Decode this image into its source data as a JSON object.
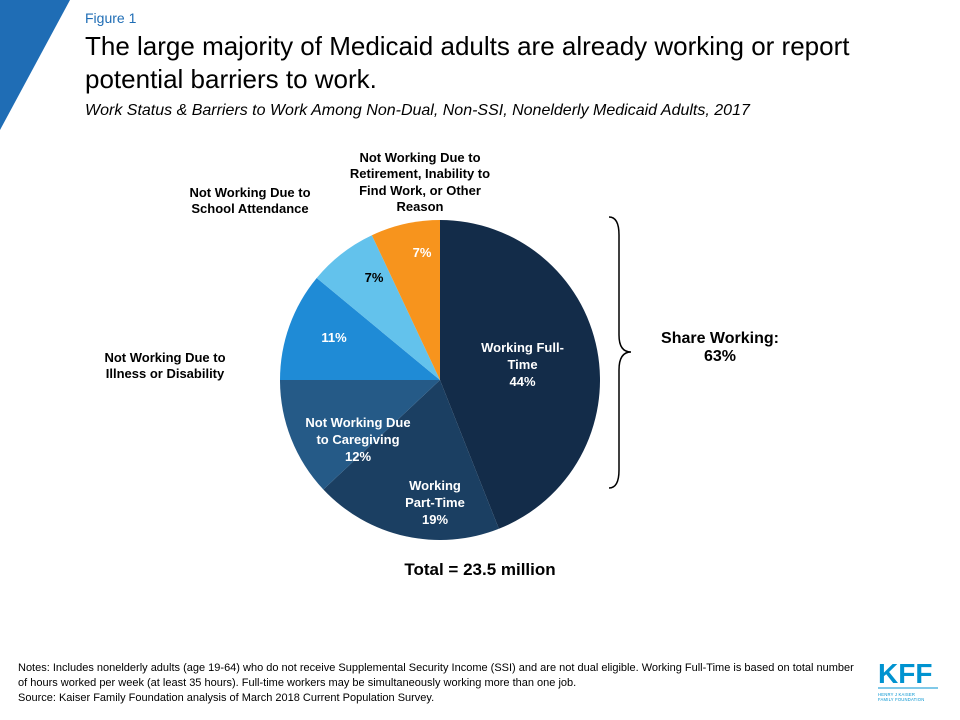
{
  "header": {
    "figure_label": "Figure 1",
    "title": "The large majority of Medicaid adults are already working or report potential barriers to work.",
    "subtitle": "Work Status & Barriers to Work Among Non-Dual, Non-SSI, Nonelderly Medicaid Adults, 2017"
  },
  "chart": {
    "type": "pie",
    "background_color": "#ffffff",
    "slices": [
      {
        "label": "Working Full-Time",
        "value": 44,
        "pct": "44%",
        "color": "#132c49",
        "in_slice": true,
        "text_color": "#ffffff"
      },
      {
        "label": "Working Part-Time",
        "value": 19,
        "pct": "19%",
        "color": "#1b3f62",
        "in_slice": true,
        "text_color": "#ffffff"
      },
      {
        "label": "Not Working Due to Caregiving",
        "value": 12,
        "pct": "12%",
        "color": "#255a87",
        "in_slice": true,
        "text_color": "#ffffff"
      },
      {
        "label": "Not Working Due to Illness or Disability",
        "value": 11,
        "pct": "11%",
        "color": "#1f8bd6",
        "in_slice": false,
        "text_color": "#ffffff"
      },
      {
        "label": "Not Working Due to School Attendance",
        "value": 7,
        "pct": "7%",
        "color": "#63c2ec",
        "in_slice": false,
        "text_color": "#000000"
      },
      {
        "label": "Not Working Due to Retirement, Inability to Find Work, or Other Reason",
        "value": 7,
        "pct": "7%",
        "color": "#f7941d",
        "in_slice": false,
        "text_color": "#000000"
      }
    ],
    "share_working_label": "Share Working:",
    "share_working_value": "63%",
    "total_label": "Total = 23.5 million",
    "label_fontsize": 13,
    "title_fontsize": 26
  },
  "external_labels": {
    "illness": "Not Working Due to Illness or Disability",
    "school": "Not Working Due to School Attendance",
    "other": "Not Working Due to Retirement, Inability to Find Work, or Other Reason"
  },
  "footer": {
    "notes": "Notes: Includes nonelderly adults (age 19-64) who do not receive Supplemental Security Income (SSI) and are not dual eligible. Working Full-Time is based on total number of hours worked per week (at least 35 hours). Full-time workers may be simultaneously working more than one job.",
    "source": "Source: Kaiser Family Foundation analysis of March 2018 Current Population Survey."
  },
  "branding": {
    "accent_color": "#1f6db5",
    "logo_text": "KFF",
    "logo_sub": "HENRY J KAISER FAMILY FOUNDATION",
    "logo_color": "#0093d0"
  }
}
